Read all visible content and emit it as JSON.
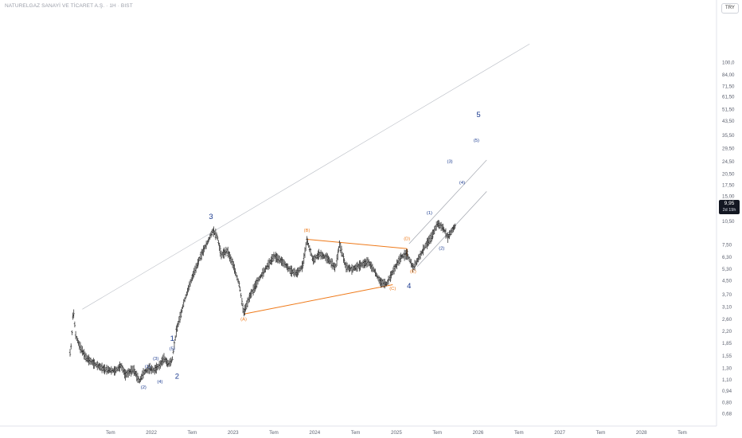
{
  "header": {
    "symbol_title": "NATURELGAZ SANAYİ VE TİCARET A.Ş. · 1H · BIST",
    "currency_button": "TRY"
  },
  "price_label": {
    "value": "9,95",
    "countdown": "2d 19h"
  },
  "colors": {
    "bars": "#1e1e1e",
    "wave_blue": "#1a3a8f",
    "triangle_orange": "#ef7a1a",
    "channel_gray": "#a0a4ad",
    "axis_text": "#5d6270"
  },
  "chart_data": {
    "type": "bar",
    "y_scale": "log",
    "y_ticks": [
      "0,68",
      "0,80",
      "0,94",
      "1,10",
      "1,30",
      "1,55",
      "1,85",
      "2,20",
      "2,60",
      "3,10",
      "3,70",
      "4,50",
      "5,30",
      "6,30",
      "7,50",
      "10,50",
      "12,50",
      "15,00",
      "17,50",
      "20,50",
      "24,50",
      "29,50",
      "35,50",
      "43,50",
      "51,50",
      "61,50",
      "71,50",
      "84,00",
      "100,0"
    ],
    "x_ticks": [
      "Tem",
      "2022",
      "Tem",
      "2023",
      "Tem",
      "2024",
      "Tem",
      "2025",
      "Tem",
      "2026",
      "Tem",
      "2027",
      "Tem",
      "2028",
      "Tem"
    ],
    "last_price": 9.95,
    "price_path": [
      [
        0,
        1.62
      ],
      [
        0.03,
        1.82
      ],
      [
        0.08,
        3.05
      ],
      [
        0.14,
        2.05
      ],
      [
        0.25,
        1.75
      ],
      [
        0.4,
        1.5
      ],
      [
        0.6,
        1.38
      ],
      [
        0.85,
        1.28
      ],
      [
        1.1,
        1.25
      ],
      [
        1.25,
        1.35
      ],
      [
        1.35,
        1.18
      ],
      [
        1.55,
        1.28
      ],
      [
        1.7,
        1.08
      ],
      [
        1.8,
        1.22
      ],
      [
        1.95,
        1.3
      ],
      [
        2.05,
        1.26
      ],
      [
        2.2,
        1.36
      ],
      [
        2.3,
        1.5
      ],
      [
        2.4,
        1.38
      ],
      [
        2.5,
        1.45
      ],
      [
        2.6,
        2.2
      ],
      [
        2.8,
        3.4
      ],
      [
        3.0,
        4.8
      ],
      [
        3.2,
        6.4
      ],
      [
        3.4,
        8.1
      ],
      [
        3.5,
        9.2
      ],
      [
        3.6,
        8.5
      ],
      [
        3.7,
        6.5
      ],
      [
        3.85,
        6.9
      ],
      [
        4.0,
        5.6
      ],
      [
        4.15,
        4.2
      ],
      [
        4.25,
        2.85
      ],
      [
        4.4,
        3.6
      ],
      [
        4.6,
        4.5
      ],
      [
        4.8,
        5.4
      ],
      [
        5.0,
        6.4
      ],
      [
        5.2,
        5.9
      ],
      [
        5.4,
        5.2
      ],
      [
        5.55,
        5.0
      ],
      [
        5.7,
        5.6
      ],
      [
        5.8,
        8.1
      ],
      [
        5.95,
        6.0
      ],
      [
        6.1,
        6.6
      ],
      [
        6.3,
        6.2
      ],
      [
        6.5,
        5.4
      ],
      [
        6.6,
        7.6
      ],
      [
        6.75,
        5.5
      ],
      [
        6.9,
        5.3
      ],
      [
        7.1,
        5.6
      ],
      [
        7.3,
        5.9
      ],
      [
        7.45,
        5.2
      ],
      [
        7.6,
        4.4
      ],
      [
        7.75,
        4.3
      ],
      [
        7.9,
        5.1
      ],
      [
        8.1,
        6.3
      ],
      [
        8.25,
        6.6
      ],
      [
        8.4,
        5.4
      ],
      [
        8.55,
        6.3
      ],
      [
        8.7,
        7.4
      ],
      [
        8.85,
        8.4
      ],
      [
        9.0,
        10.2
      ],
      [
        9.15,
        9.4
      ],
      [
        9.25,
        8.3
      ],
      [
        9.35,
        9.2
      ],
      [
        9.45,
        9.95
      ]
    ],
    "annotations": {
      "primary_waves": [
        {
          "label": "3",
          "x": 3.45,
          "y": 10.8
        },
        {
          "label": "1",
          "x": 2.5,
          "y": 1.92
        },
        {
          "label": "2",
          "x": 2.62,
          "y": 1.12
        },
        {
          "label": "4",
          "x": 8.3,
          "y": 4.05
        },
        {
          "label": "5",
          "x": 10.0,
          "y": 46.0
        }
      ],
      "subwaves": [
        {
          "label": "(1)",
          "x": 1.9,
          "y": 1.3
        },
        {
          "label": "(2)",
          "x": 1.8,
          "y": 0.97
        },
        {
          "label": "(3)",
          "x": 2.1,
          "y": 1.46
        },
        {
          "label": "(4)",
          "x": 2.2,
          "y": 1.05
        },
        {
          "label": "(5)",
          "x": 2.5,
          "y": 1.68
        },
        {
          "label": "(1)",
          "x": 8.8,
          "y": 11.6
        },
        {
          "label": "(2)",
          "x": 9.1,
          "y": 7.0
        },
        {
          "label": "(3)",
          "x": 9.3,
          "y": 24.0
        },
        {
          "label": "(4)",
          "x": 9.6,
          "y": 17.8
        },
        {
          "label": "(5)",
          "x": 9.95,
          "y": 32.5
        }
      ],
      "triangle_labels": [
        {
          "label": "(A)",
          "x": 4.25,
          "y": 2.55
        },
        {
          "label": "(B)",
          "x": 5.8,
          "y": 9.0
        },
        {
          "label": "(C)",
          "x": 7.9,
          "y": 3.95
        },
        {
          "label": "(D)",
          "x": 8.25,
          "y": 8.0
        },
        {
          "label": "(E)",
          "x": 8.4,
          "y": 5.05
        }
      ]
    }
  }
}
